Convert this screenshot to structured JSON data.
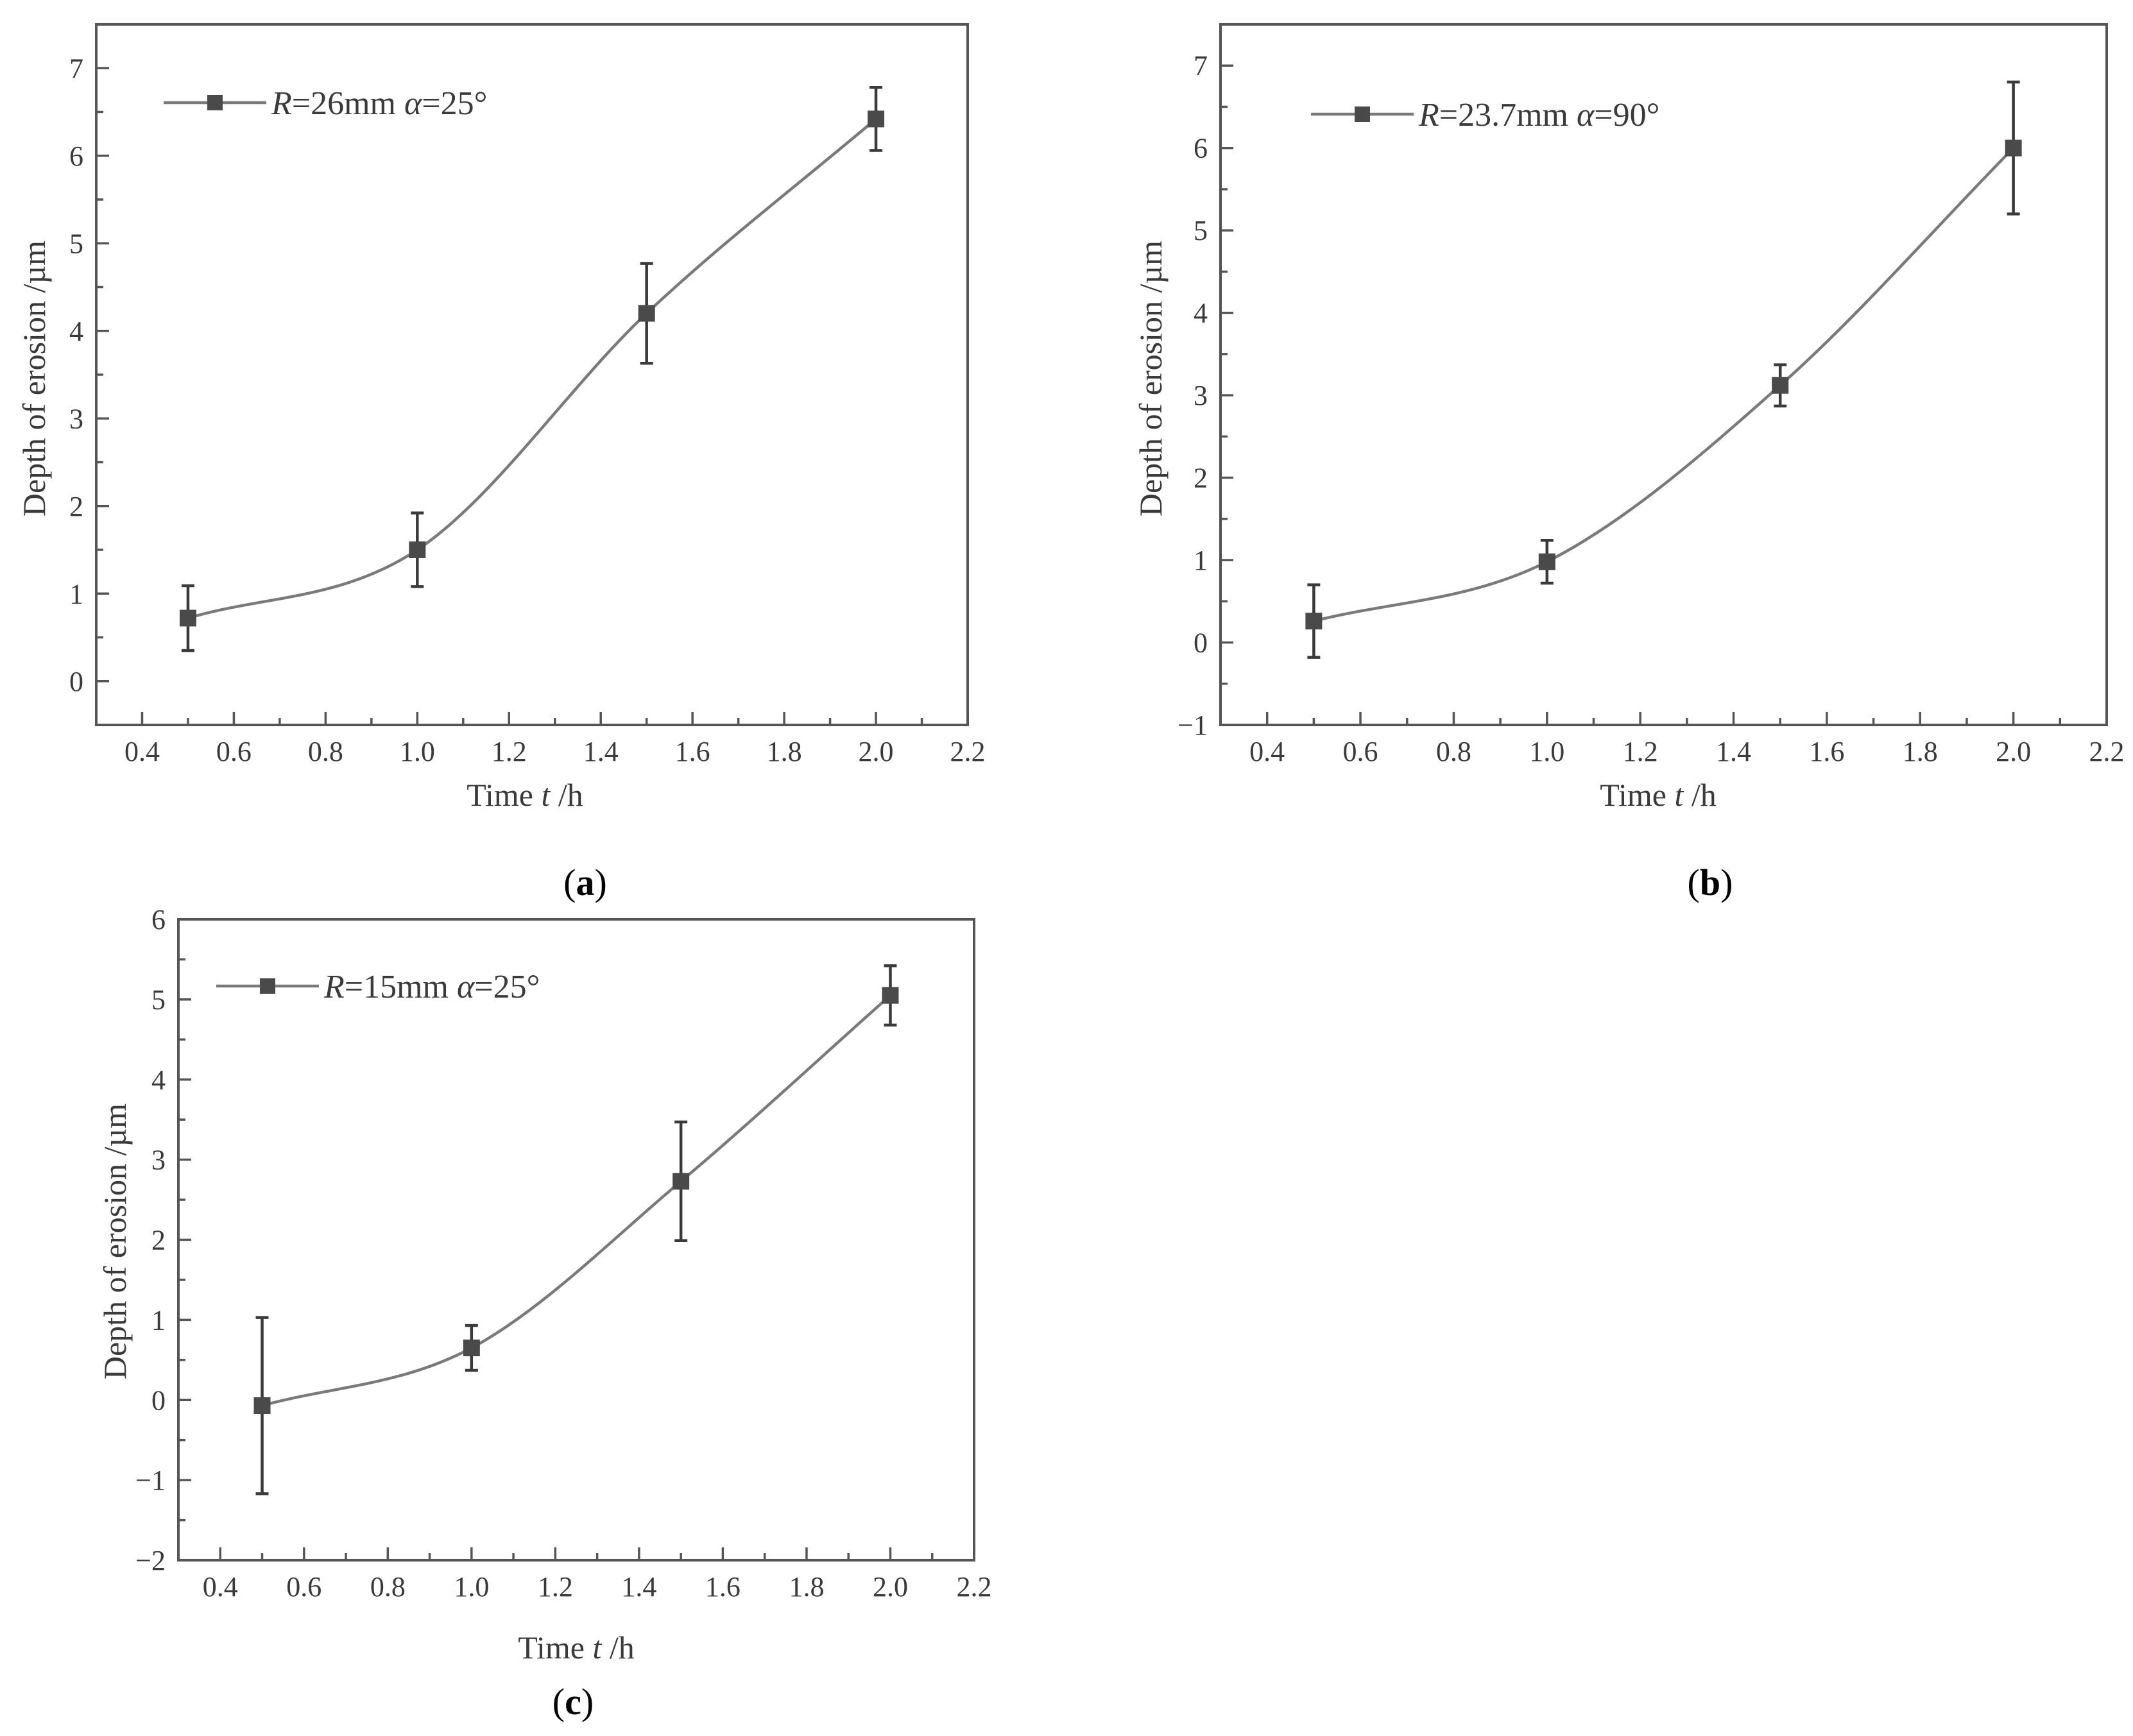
{
  "figure_title": "",
  "colors": {
    "axis": "#555555",
    "curve": "#7a7a7a",
    "marker": "#4a4a4a",
    "text": "#3a3a3a"
  },
  "chart_data": [
    {
      "id": "a",
      "type": "line",
      "caption": "(a)",
      "caption_letter": "a",
      "xlabel": "Time t /h",
      "xlabel_main": "Time ",
      "xlabel_var": "t",
      "xlabel_unit": " /h",
      "ylabel": "Depth of erosion /µm",
      "xlim": [
        0.3,
        2.2
      ],
      "ylim": [
        -0.5,
        7.5
      ],
      "xticks": [
        0.4,
        0.6,
        0.8,
        1.0,
        1.2,
        1.4,
        1.6,
        1.8,
        2.0,
        2.2
      ],
      "xtick_labels": [
        "0.4",
        "0.6",
        "0.8",
        "1.0",
        "1.2",
        "1.4",
        "1.6",
        "1.8",
        "2.0",
        "2.2"
      ],
      "yticks": [
        0,
        1,
        2,
        3,
        4,
        5,
        6,
        7
      ],
      "ytick_labels": [
        "0",
        "1",
        "2",
        "3",
        "4",
        "5",
        "6",
        "7"
      ],
      "legend": {
        "R_value": "=26mm",
        "alpha_value": "=25°",
        "text": "R=26mm α=25°"
      },
      "series": [
        {
          "name": "R=26mm α=25°",
          "x": [
            0.5,
            1.0,
            1.5,
            2.0
          ],
          "y": [
            0.72,
            1.5,
            4.2,
            6.42
          ],
          "err": [
            0.37,
            0.42,
            0.57,
            0.36
          ]
        }
      ]
    },
    {
      "id": "b",
      "type": "line",
      "caption": "(b)",
      "caption_letter": "b",
      "xlabel": "Time t /h",
      "xlabel_main": "Time ",
      "xlabel_var": "t",
      "xlabel_unit": " /h",
      "ylabel": "Depth of erosion /µm",
      "xlim": [
        0.3,
        2.2
      ],
      "ylim": [
        -1.0,
        7.5
      ],
      "xticks": [
        0.4,
        0.6,
        0.8,
        1.0,
        1.2,
        1.4,
        1.6,
        1.8,
        2.0,
        2.2
      ],
      "xtick_labels": [
        "0.4",
        "0.6",
        "0.8",
        "1.0",
        "1.2",
        "1.4",
        "1.6",
        "1.8",
        "2.0",
        "2.2"
      ],
      "yticks": [
        -1,
        0,
        1,
        2,
        3,
        4,
        5,
        6,
        7
      ],
      "ytick_labels": [
        "−1",
        "0",
        "1",
        "2",
        "3",
        "4",
        "5",
        "6",
        "7"
      ],
      "legend": {
        "R_value": "=23.7mm",
        "alpha_value": "=90°",
        "text": "R=23.7mm α=90°"
      },
      "series": [
        {
          "name": "R=23.7mm α=90°",
          "x": [
            0.5,
            1.0,
            1.5,
            2.0
          ],
          "y": [
            0.26,
            0.98,
            3.12,
            6.0
          ],
          "err": [
            0.44,
            0.26,
            0.25,
            0.8
          ]
        }
      ]
    },
    {
      "id": "c",
      "type": "line",
      "caption": "(c)",
      "caption_letter": "c",
      "xlabel": "Time t /h",
      "xlabel_main": "Time ",
      "xlabel_var": "t",
      "xlabel_unit": " /h",
      "ylabel": "Depth of erosion /µm",
      "xlim": [
        0.3,
        2.2
      ],
      "ylim": [
        -2.0,
        6.0
      ],
      "xticks": [
        0.4,
        0.6,
        0.8,
        1.0,
        1.2,
        1.4,
        1.6,
        1.8,
        2.0,
        2.2
      ],
      "xtick_labels": [
        "0.4",
        "0.6",
        "0.8",
        "1.0",
        "1.2",
        "1.4",
        "1.6",
        "1.8",
        "2.0",
        "2.2"
      ],
      "yticks": [
        -2,
        -1,
        0,
        1,
        2,
        3,
        4,
        5,
        6
      ],
      "ytick_labels": [
        "−2",
        "−1",
        "0",
        "1",
        "2",
        "3",
        "4",
        "5",
        "6"
      ],
      "legend": {
        "R_value": "=15mm",
        "alpha_value": "=25°",
        "text": "R=15mm α=25°"
      },
      "series": [
        {
          "name": "R=15mm α=25°",
          "x": [
            0.5,
            1.0,
            1.5,
            2.0
          ],
          "y": [
            -0.07,
            0.65,
            2.73,
            5.05
          ],
          "err": [
            1.1,
            0.28,
            0.74,
            0.37
          ]
        }
      ]
    }
  ]
}
